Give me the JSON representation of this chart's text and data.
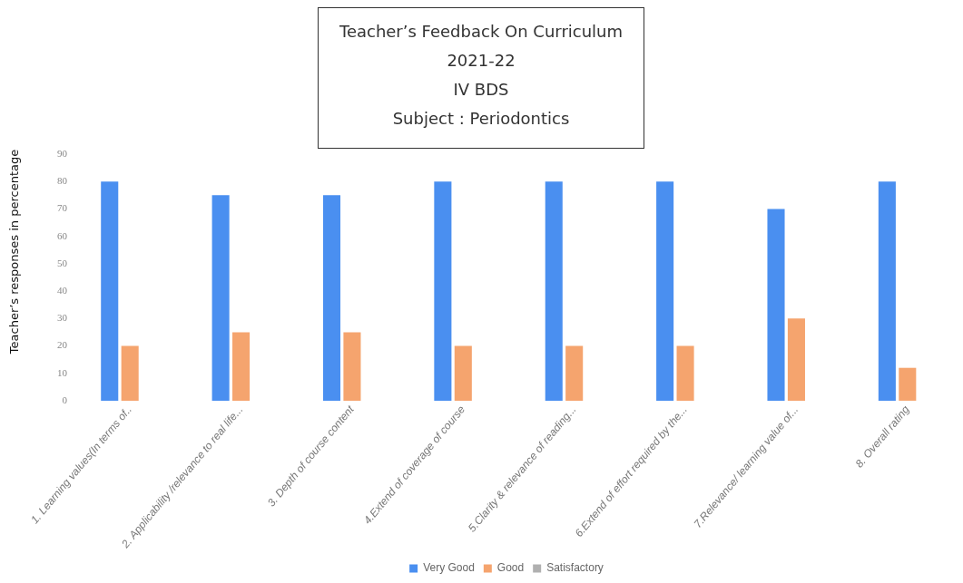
{
  "chart_data": {
    "type": "bar",
    "title": "Teacher’s Feedback On Curriculum 2021-22",
    "subtitle": "IV BDS\nSubject : Periodontics",
    "ylabel": "Teacher’s responses in percentage",
    "categories": [
      "1. Learning values(In terms of..",
      "2. Applicability /relevance to real life...",
      "3. Depth of course content",
      "4.Extend of coverage of course",
      "5.Clarity & relevance of reading...",
      "6.Extend of effort required by the...",
      "7.Relevance/ learning value of...",
      "8. Overall rating"
    ],
    "series": [
      {
        "name": "Very Good",
        "color": "#4a8ff0",
        "values": [
          80,
          75,
          75,
          80,
          80,
          80,
          70,
          80
        ]
      },
      {
        "name": "Good",
        "color": "#f5a46e",
        "values": [
          20,
          25,
          25,
          20,
          20,
          20,
          30,
          12
        ]
      },
      {
        "name": "Satisfactory",
        "color": "#b0b0b0",
        "values": [
          0,
          0,
          0,
          0,
          0,
          0,
          0,
          0
        ]
      }
    ],
    "ylim": [
      0,
      90
    ],
    "yticks": [
      0,
      10,
      20,
      30,
      40,
      50,
      60,
      70,
      80,
      90
    ],
    "grid": false,
    "legend": "bottom"
  }
}
